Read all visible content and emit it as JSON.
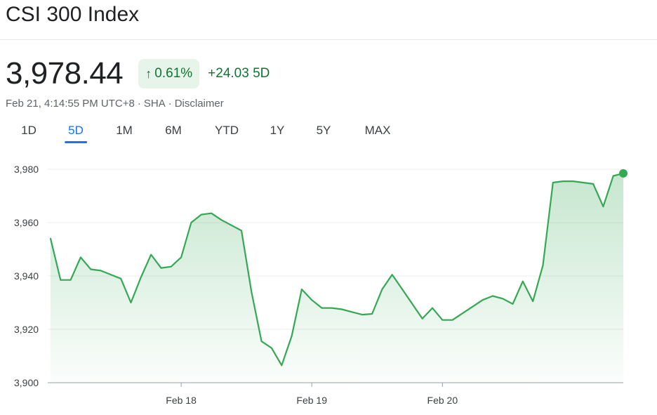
{
  "header": {
    "title": "CSI 300 Index"
  },
  "quote": {
    "price": "3,978.44",
    "change_percent": "0.61%",
    "change_icon": "arrow-up-icon",
    "change_points": "+24.03 5D",
    "timestamp": "Feb 21, 4:14:55 PM UTC+8",
    "exchange": "SHA",
    "disclaimer": "Disclaimer"
  },
  "colors": {
    "up": "#137333",
    "line": "#34a853",
    "badge_bg": "#e6f4ea",
    "active_tab": "#1a73e8"
  },
  "ranges": {
    "active": "5D",
    "items": [
      "1D",
      "5D",
      "1M",
      "6M",
      "YTD",
      "1Y",
      "5Y",
      "MAX"
    ]
  },
  "chart_data": {
    "type": "area",
    "x_tick_labels": [
      "Feb 18",
      "Feb 19",
      "Feb 20"
    ],
    "y_ticks": [
      "3,900",
      "3,920",
      "3,940",
      "3,960",
      "3,980"
    ],
    "ylim": [
      3900,
      3980
    ],
    "grid": true,
    "values": [
      3954.0,
      3938.5,
      3938.5,
      3947.0,
      3942.5,
      3942.0,
      3940.5,
      3939.0,
      3930.0,
      3939.5,
      3948.0,
      3943.0,
      3943.5,
      3947.0,
      3960.0,
      3963.0,
      3963.5,
      3961.0,
      3959.0,
      3957.0,
      3934.0,
      3915.5,
      3913.0,
      3906.5,
      3917.5,
      3935.0,
      3931.0,
      3928.0,
      3928.0,
      3927.5,
      3926.5,
      3925.5,
      3925.8,
      3935.0,
      3940.5,
      3935.0,
      3929.5,
      3924.0,
      3928.0,
      3923.5,
      3923.5,
      3926.0,
      3928.5,
      3931.0,
      3932.5,
      3931.5,
      3929.5,
      3938.0,
      3930.5,
      3944.0,
      3975.0,
      3975.5,
      3975.5,
      3975.0,
      3974.5,
      3966.0,
      3977.5,
      3978.44
    ]
  }
}
